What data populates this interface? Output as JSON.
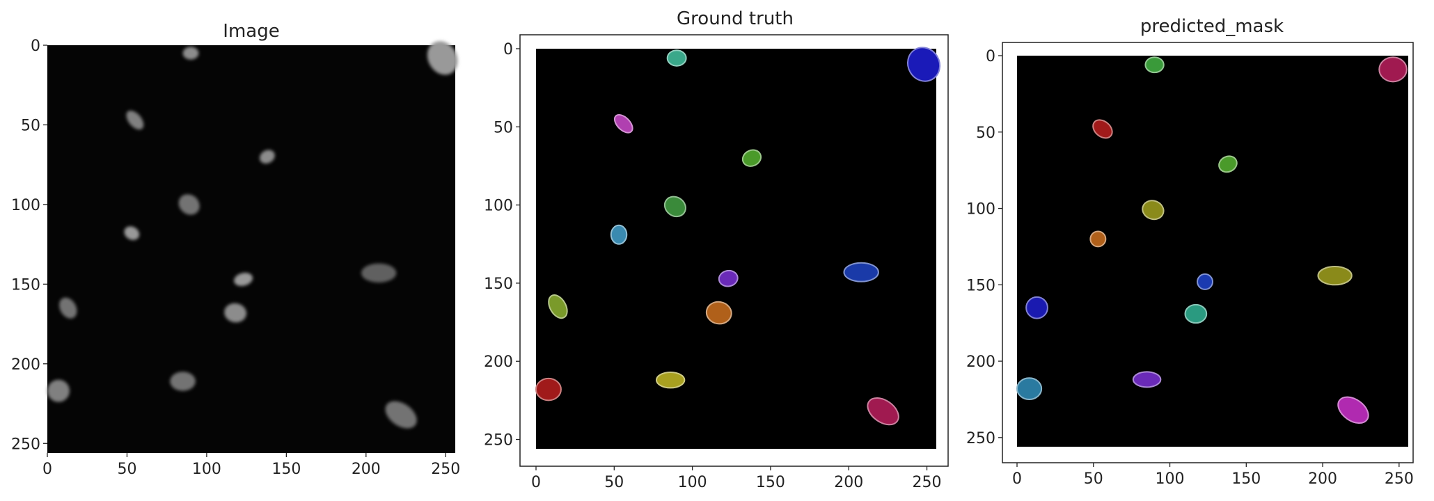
{
  "panels": [
    {
      "id": "image",
      "title": "Image",
      "x_ticks": [
        "0",
        "50",
        "100",
        "150",
        "200",
        "250"
      ],
      "y_ticks": [
        "0",
        "50",
        "100",
        "150",
        "200",
        "250"
      ],
      "nuclei": [
        {
          "cx": 90,
          "cy": 5,
          "rx": 5,
          "ry": 4,
          "rot": 0,
          "brightness": 0.55
        },
        {
          "cx": 248,
          "cy": 8,
          "rx": 9,
          "ry": 11,
          "rot": -30,
          "brightness": 0.6
        },
        {
          "cx": 55,
          "cy": 47,
          "rx": 7,
          "ry": 4,
          "rot": 50,
          "brightness": 0.5
        },
        {
          "cx": 138,
          "cy": 70,
          "rx": 5,
          "ry": 4,
          "rot": -30,
          "brightness": 0.55
        },
        {
          "cx": 89,
          "cy": 100,
          "rx": 7,
          "ry": 6,
          "rot": 40,
          "brightness": 0.45
        },
        {
          "cx": 53,
          "cy": 118,
          "rx": 5,
          "ry": 4,
          "rot": 30,
          "brightness": 0.6
        },
        {
          "cx": 123,
          "cy": 147,
          "rx": 6,
          "ry": 4,
          "rot": -15,
          "brightness": 0.6
        },
        {
          "cx": 208,
          "cy": 143,
          "rx": 11,
          "ry": 6,
          "rot": 0,
          "brightness": 0.38
        },
        {
          "cx": 13,
          "cy": 165,
          "rx": 7,
          "ry": 5,
          "rot": 60,
          "brightness": 0.45
        },
        {
          "cx": 118,
          "cy": 168,
          "rx": 7,
          "ry": 6,
          "rot": 10,
          "brightness": 0.55
        },
        {
          "cx": 85,
          "cy": 211,
          "rx": 8,
          "ry": 6,
          "rot": 0,
          "brightness": 0.45
        },
        {
          "cx": 7,
          "cy": 217,
          "rx": 7,
          "ry": 7,
          "rot": 0,
          "brightness": 0.5
        },
        {
          "cx": 222,
          "cy": 232,
          "rx": 11,
          "ry": 7,
          "rot": 35,
          "brightness": 0.45
        }
      ]
    },
    {
      "id": "ground-truth",
      "title": "Ground truth",
      "x_ticks": [
        "0",
        "50",
        "100",
        "150",
        "200",
        "250"
      ],
      "y_ticks": [
        "0",
        "50",
        "100",
        "150",
        "200",
        "250"
      ],
      "objects": [
        {
          "cx": 90,
          "cy": 6,
          "rx": 6,
          "ry": 5,
          "rot": 0,
          "color": "#3aa88a"
        },
        {
          "cx": 248,
          "cy": 10,
          "rx": 10,
          "ry": 11,
          "rot": -30,
          "color": "#1a1ab8"
        },
        {
          "cx": 56,
          "cy": 48,
          "rx": 7,
          "ry": 4,
          "rot": 45,
          "color": "#b040b0"
        },
        {
          "cx": 138,
          "cy": 70,
          "rx": 6,
          "ry": 5,
          "rot": -25,
          "color": "#4a9a2a"
        },
        {
          "cx": 89,
          "cy": 101,
          "rx": 7,
          "ry": 6,
          "rot": 35,
          "color": "#3a8a3a"
        },
        {
          "cx": 53,
          "cy": 119,
          "rx": 5,
          "ry": 6,
          "rot": 0,
          "color": "#3a8ab0"
        },
        {
          "cx": 123,
          "cy": 147,
          "rx": 6,
          "ry": 5,
          "rot": -10,
          "color": "#6a2ab8"
        },
        {
          "cx": 208,
          "cy": 143,
          "rx": 11,
          "ry": 6,
          "rot": 0,
          "color": "#1a3aa8"
        },
        {
          "cx": 14,
          "cy": 165,
          "rx": 8,
          "ry": 5,
          "rot": 60,
          "color": "#7a9a2a"
        },
        {
          "cx": 117,
          "cy": 169,
          "rx": 8,
          "ry": 7,
          "rot": 10,
          "color": "#b0601a"
        },
        {
          "cx": 86,
          "cy": 212,
          "rx": 9,
          "ry": 5,
          "rot": 0,
          "color": "#a8a020"
        },
        {
          "cx": 8,
          "cy": 218,
          "rx": 8,
          "ry": 7,
          "rot": 0,
          "color": "#a01a1a"
        },
        {
          "cx": 222,
          "cy": 232,
          "rx": 11,
          "ry": 7,
          "rot": 35,
          "color": "#a01a50"
        }
      ]
    },
    {
      "id": "predicted-mask",
      "title": "predicted_mask",
      "x_ticks": [
        "0",
        "50",
        "100",
        "150",
        "200",
        "250"
      ],
      "y_ticks": [
        "0",
        "50",
        "100",
        "150",
        "200",
        "250"
      ],
      "objects": [
        {
          "cx": 90,
          "cy": 6,
          "rx": 6,
          "ry": 5,
          "rot": 0,
          "color": "#3a9a3a"
        },
        {
          "cx": 246,
          "cy": 9,
          "rx": 9,
          "ry": 8,
          "rot": 0,
          "color": "#a01a50"
        },
        {
          "cx": 56,
          "cy": 48,
          "rx": 7,
          "ry": 5,
          "rot": 40,
          "color": "#a01a1a"
        },
        {
          "cx": 138,
          "cy": 71,
          "rx": 6,
          "ry": 5,
          "rot": -25,
          "color": "#4a9a2a"
        },
        {
          "cx": 89,
          "cy": 101,
          "rx": 7,
          "ry": 6,
          "rot": 20,
          "color": "#8a8a1a"
        },
        {
          "cx": 53,
          "cy": 120,
          "rx": 5,
          "ry": 5,
          "rot": 0,
          "color": "#b0601a"
        },
        {
          "cx": 123,
          "cy": 148,
          "rx": 5,
          "ry": 5,
          "rot": 0,
          "color": "#1a3ab0"
        },
        {
          "cx": 208,
          "cy": 144,
          "rx": 11,
          "ry": 6,
          "rot": 0,
          "color": "#8a8a1a"
        },
        {
          "cx": 13,
          "cy": 165,
          "rx": 7,
          "ry": 7,
          "rot": 0,
          "color": "#1a1ab0"
        },
        {
          "cx": 117,
          "cy": 169,
          "rx": 7,
          "ry": 6,
          "rot": 0,
          "color": "#2a9a80"
        },
        {
          "cx": 85,
          "cy": 212,
          "rx": 9,
          "ry": 5,
          "rot": 0,
          "color": "#6a2ab8"
        },
        {
          "cx": 8,
          "cy": 218,
          "rx": 8,
          "ry": 7,
          "rot": 0,
          "color": "#2a7aa0"
        },
        {
          "cx": 220,
          "cy": 232,
          "rx": 11,
          "ry": 7,
          "rot": 35,
          "color": "#b02ab0"
        }
      ]
    }
  ]
}
